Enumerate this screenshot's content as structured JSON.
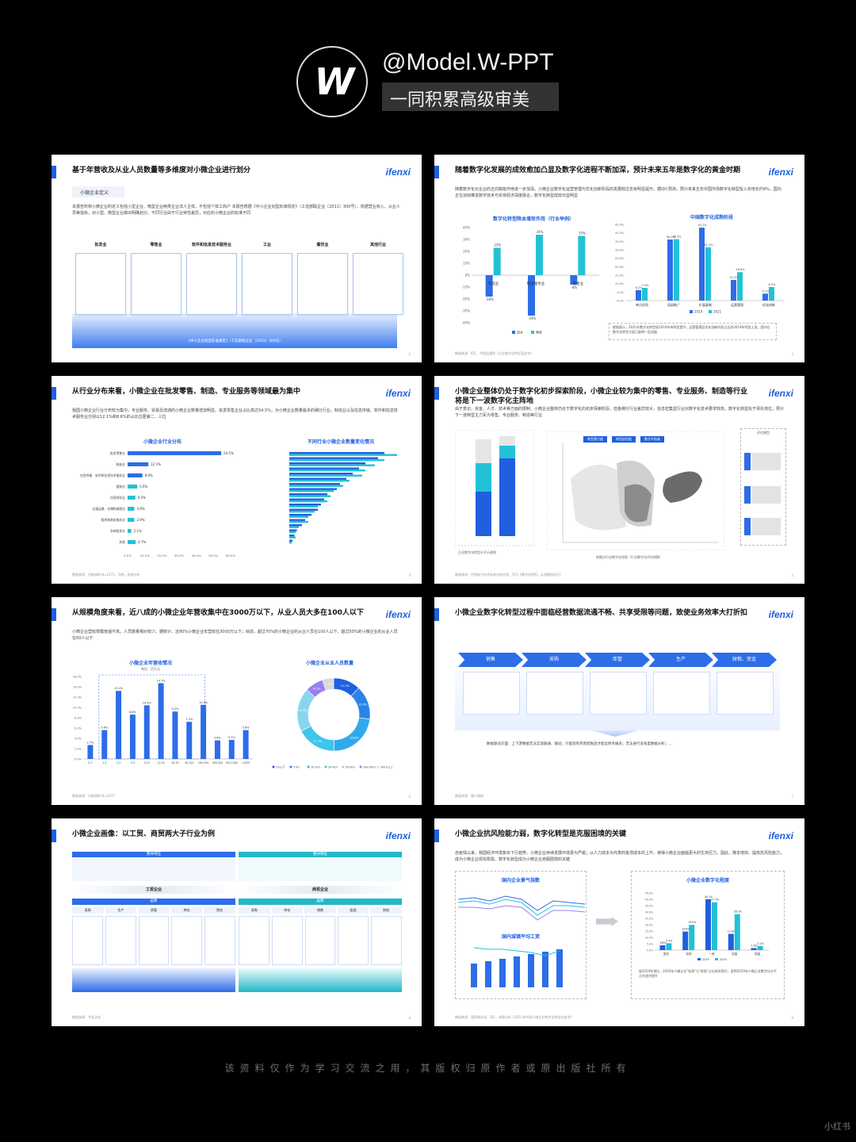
{
  "header": {
    "logo_glyph": "W",
    "handle": "@Model.W-PPT",
    "tagline": "一同积累高级审美"
  },
  "footer": {
    "note": "该资料仅作为学习交流之用，其版权归原作者或原出版社所有",
    "watermark": "小红书"
  },
  "brand": "ifenxi",
  "slides": [
    {
      "title": "基于年营收及从业人员数量等多维度对小微企业进行划分",
      "chip": "小微企业定义",
      "desc": "本报告所称小微企业的定义包括小型企业、微型企业两类企业法人主体，不包括个体工商户 本报告根据《中小企业划型标准规定》（工信部联企业〔2011〕300号），依据营业收入、从业人员等指标，对小型、微型企业做出明确划分。不同行业由于行业特性差异，对应的小微企业的标准不同",
      "columns": [
        "批发业",
        "零售业",
        "软件和信息技术服务业",
        "工业",
        "餐饮业",
        "其他行业"
      ],
      "footnote": "《中小企业划型标准规定》（工信部联企业〔2011〕300号）",
      "page": "2"
    },
    {
      "title": "随着数字化发展的成效愈加凸显及数字化进程不断加深，预计未来五年是数字化的黄金时期",
      "desc": "随着数字化对企业的正向赋能作用进一步加深，小微企业数字化运营管理与优化创新阶段的发展较过去有明显提升。据IDC预测，预计未来五年中国市场数字化转型投入年增长约9%，国内正在加快推进数字技术与实体经济深度融合，数字化转型成效日益明显",
      "chart_a_title": "数字化转型降本增效作用（行业举例）",
      "chart_b_title": "中国数字化成熟阶段",
      "note": "根据图示，2021年数字化转型较2019年有明显提升，运营管理及优化创新阶段占比较2019年明显上涨，国内在数字化转型方面已取得一定进展",
      "source": "数据来源：IDC、中国信通院《企业数字化转型蓝皮书》",
      "page": "3"
    },
    {
      "title": "从行业分布来看，小微企业在批发零售、制造、专业服务等领域最为集中",
      "desc": "我国小微企业行业分布较为集中，专业服务、贸易及流通的小微企业数量增加明显。批发零售企业占比高达54.5%，为小微企业数量最多的细分行业，制造业以及信息传输、软件和信息技术服务业分别以12.1%和8.6%的占比位居第二、三位",
      "chart_a_title": "小微企业行业分布",
      "chart_b_title": "不同行业小微企业数量变化情况",
      "source": "数据来源：问卷调研 N=1471，问卷，易观分析",
      "page": "4"
    },
    {
      "title": "小微企业整体仍处于数字化初步探索阶段，小微企业较为集中的零售、专业服务、制造等行业将是下一波数字化主阵地",
      "desc": "由于意识、资金、人才、技术等方面的限制，小微企业整体仍处于数字化的初步探索阶段，但各细分行业差异较大，信息密集型行业对数字化技术要求较高，数字化转型处于领先地位；预计下一波转型主力军为零售、专业服务、制造等行业",
      "caption_a": "企业数字化转型水平示意图",
      "caption_b": "各细分行业数字化进程（行业数字化评估指数）",
      "legend_title": "评估模型",
      "tags": [
        "转型潜力度",
        "转型迫切度",
        "数字开拓者"
      ],
      "source": "数据来源：中国电子技术标准化研究院、华为《数字化转型，从战略到执行》",
      "page": "5"
    },
    {
      "title": "从规模角度来看，近八成的小微企业年营收集中在3000万以下，从业人员大多在100人以下",
      "desc": "小微企业营收规模普遍不高，人员数量相对较少。据统计，近80%小微企业年营收在3000万以下；目前，超过70%的小微企业的从业人员在100人以下，超过50%的小微企业的从业人员在50人以下",
      "chart_a_title": "小微企业年营收情况",
      "chart_a_unit": "单位：百万元",
      "chart_b_title": "小微企业从业人员数量",
      "source": "数据来源：问卷调研 N=1471",
      "page": "6"
    },
    {
      "title": "小微企业数字化转型过程中面临经营数据流通不畅、共享受限等问题，致使业务效率大打折扣",
      "steps": [
        "销售",
        "采购",
        "库管",
        "生产",
        "财税、资金"
      ],
      "bottom": "数据联动方面：上下游数据无法实现联通、联动；只能等到月底结账后才能出财务报表；无法进行多角度数据分析；...",
      "source": "数据来源：客户调研",
      "page": "7"
    },
    {
      "title": "小微企业画像：以工贸、商贸两大子行业为例",
      "panel_a": {
        "feature": "整体特征",
        "kind": "工贸企业",
        "bar": "画像",
        "steps": [
          "采购",
          "生产",
          "质管",
          "库存",
          "财务"
        ]
      },
      "panel_b": {
        "feature": "整体特征",
        "kind": "商贸企业",
        "bar": "画像",
        "steps": [
          "采购",
          "库存",
          "销售",
          "配送",
          "财务"
        ]
      },
      "source": "数据来源：专家访谈",
      "page": "8"
    },
    {
      "title": "小微企业抗风险能力弱，数字化转型是克服困境的关键",
      "desc": "自疫情以来，我国经济环境复杂下行趋势，小微企业存续发展环境更为严峻；以人力成本为代表的各项成本的上升，使得小微企业面临更大的生存压力。因此，降本增效、提高抗风险能力，成为小微企业现实刚需，数字化转型成为小微企业克服困境的关键",
      "chart_a_title": "国内企业景气指数",
      "chart_b_title": "国内城镇平均工资",
      "chart_c_title": "小微企业数字化程度",
      "note": "较2019年相比，2020年小微企业\"较高\"与\"很高\"占比有所提升，说明2019年小微企业数字化水平正在逐步提升",
      "source": "数据来源：国家统计局、IDC、易观分析《2021年中国小微企业数字化转型白皮书》",
      "page": "9"
    }
  ],
  "chart_data": [
    {
      "type": "bar",
      "title": "数字化转型降本增效作用（行业举例）",
      "categories": [
        "制造业",
        "物流服务业",
        "零售业"
      ],
      "series": [
        {
          "name": "成本",
          "values": [
            -18,
            -34,
            -8
          ]
        },
        {
          "name": "营收",
          "values": [
            23,
            34,
            33
          ]
        }
      ],
      "ylim": [
        -40,
        40
      ],
      "colors": [
        "#2d6de8",
        "#22c1d6"
      ]
    },
    {
      "type": "bar",
      "title": "中国数字化成熟阶段",
      "categories": [
        "单点实验",
        "局部推广",
        "扩展复制",
        "运营管理",
        "优化创新"
      ],
      "series": [
        {
          "name": "2019",
          "values": [
            6.2,
            36.1,
            43.1,
            12.2,
            4.1
          ]
        },
        {
          "name": "2021",
          "values": [
            7.5,
            36.3,
            31.5,
            16.8,
            8.0
          ]
        }
      ],
      "ylim": [
        0,
        45
      ],
      "colors": [
        "#2d6de8",
        "#22c1d6"
      ]
    },
    {
      "type": "bar",
      "title": "小微企业行业分布",
      "categories": [
        "批发零售业",
        "制造业",
        "信息传输、软件和信息技术服务业",
        "建筑业",
        "住宿餐饮业",
        "交通运输、仓储和邮政业",
        "租赁和商务服务业",
        "农林牧渔业",
        "其他"
      ],
      "values": [
        54.5,
        12.1,
        8.6,
        5.6,
        4.5,
        3.9,
        3.9,
        2.1,
        4.7
      ],
      "xlim": [
        0,
        60
      ]
    },
    {
      "type": "bar",
      "title": "小微企业年营收情况",
      "categories": [
        "0-1",
        "1-2",
        "2-3",
        "3-5",
        "5-10",
        "10-30",
        "30-50",
        "50-100",
        "100-300",
        "300-500",
        "500-1000",
        ">1000"
      ],
      "values": [
        2.7,
        5.6,
        13.2,
        8.6,
        10.4,
        14.7,
        9.2,
        7.2,
        10.5,
        3.6,
        3.7,
        5.6
      ],
      "ylim": [
        0,
        16
      ],
      "ylabel": "单位：百万元"
    },
    {
      "type": "pie",
      "title": "小微企业从业人员数量",
      "categories": [
        "5人以下",
        "5-9人",
        "10-19人",
        "20-49人",
        "50-99人",
        "100-299人",
        "300人以上"
      ],
      "values": [
        12.0,
        15.0,
        22.8,
        17.7,
        19.4,
        8.1,
        5.0
      ],
      "colors": [
        "#1f5fe0",
        "#2a84e8",
        "#30a9ec",
        "#40c5ec",
        "#8ad5ee",
        "#9b7ef0",
        "#d9d9d9"
      ]
    },
    {
      "type": "bar",
      "title": "小微企业数字化程度",
      "categories": [
        "很低",
        "较低",
        "一般",
        "较高",
        "很高"
      ],
      "series": [
        {
          "name": "2019",
          "values": [
            3.8,
            14.6,
            40.1,
            12.8,
            1.6
          ]
        },
        {
          "name": "2020",
          "values": [
            5.4,
            19.9,
            37.7,
            28.3,
            3.2
          ]
        }
      ],
      "ylim": [
        0,
        45
      ]
    }
  ]
}
